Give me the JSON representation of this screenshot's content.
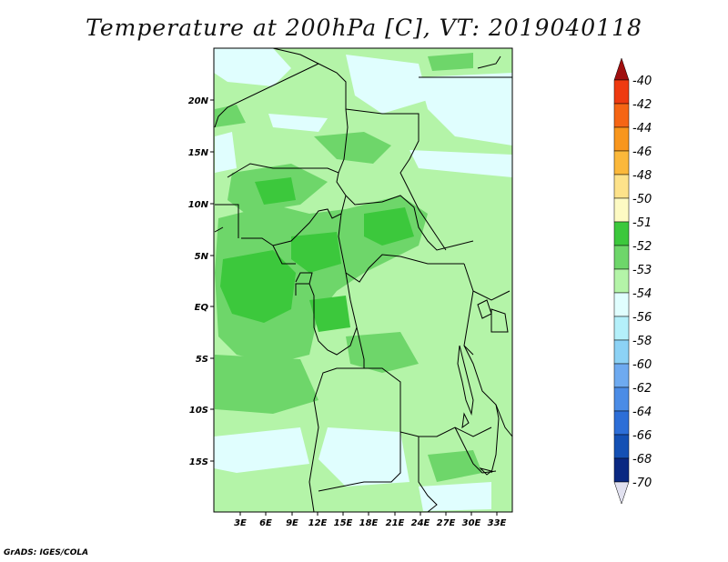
{
  "title": "Temperature at 200hPa [C], VT: 2019040118",
  "footer": "GrADS: IGES/COLA",
  "map": {
    "lat_ticks": [
      "20N",
      "15N",
      "10N",
      "5N",
      "EQ",
      "5S",
      "10S",
      "15S"
    ],
    "lon_ticks": [
      "3E",
      "6E",
      "9E",
      "12E",
      "15E",
      "18E",
      "21E",
      "24E",
      "27E",
      "30E",
      "33E"
    ]
  },
  "colorbar": {
    "levels": [
      {
        "label": "-40",
        "color": "#c8140f"
      },
      {
        "label": "-42",
        "color": "#ee3a10"
      },
      {
        "label": "-44",
        "color": "#f56514"
      },
      {
        "label": "-46",
        "color": "#f8961d"
      },
      {
        "label": "-48",
        "color": "#fbb83b"
      },
      {
        "label": "-50",
        "color": "#fde28a"
      },
      {
        "label": "-51",
        "color": "#fdfac3"
      },
      {
        "label": "-52",
        "color": "#3cc83c"
      },
      {
        "label": "-53",
        "color": "#6ed66a"
      },
      {
        "label": "-54",
        "color": "#b4f4a8"
      },
      {
        "label": "-56",
        "color": "#e0fefe"
      },
      {
        "label": "-58",
        "color": "#b4f0fa"
      },
      {
        "label": "-60",
        "color": "#8cd2f5"
      },
      {
        "label": "-62",
        "color": "#6eaaf0"
      },
      {
        "label": "-64",
        "color": "#4b8ce6"
      },
      {
        "label": "-66",
        "color": "#2d6ed7"
      },
      {
        "label": "-68",
        "color": "#1450b4"
      },
      {
        "label": "-70",
        "color": "#0a2882"
      }
    ],
    "top_arrow_color": "#a00f0f",
    "bottom_arrow_color": "#e1e1f0"
  }
}
